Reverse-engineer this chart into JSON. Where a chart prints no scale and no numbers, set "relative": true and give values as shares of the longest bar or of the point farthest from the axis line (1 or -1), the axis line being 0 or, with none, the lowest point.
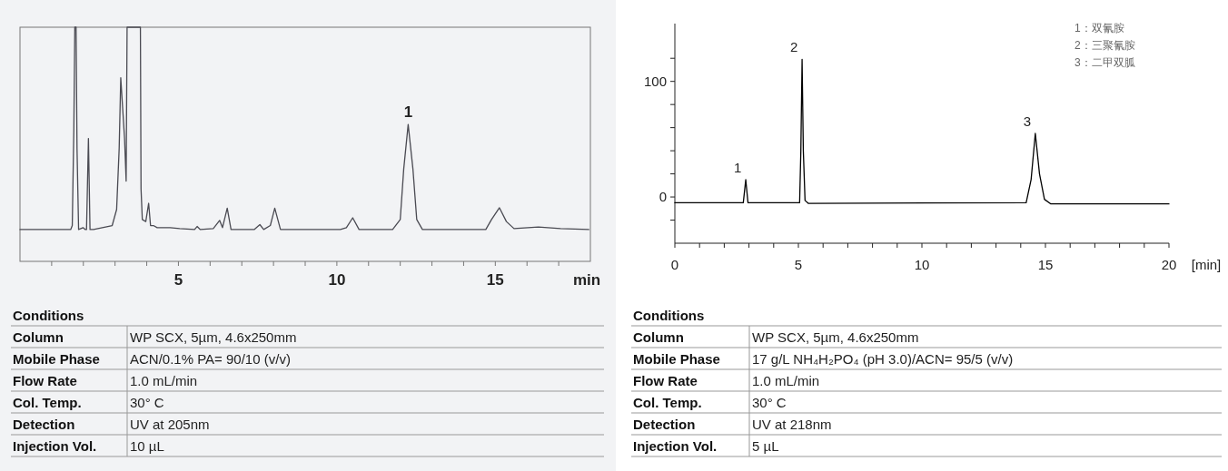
{
  "chart_data": [
    {
      "type": "line",
      "relative": true,
      "tick_labels": "x",
      "xlabel": "min",
      "color": "#4a4a52",
      "x": [
        0,
        1.6,
        1.65,
        1.7,
        1.73,
        1.77,
        1.8,
        1.85,
        1.99,
        2.06,
        2.1,
        2.16,
        2.21,
        2.32,
        2.91,
        3.05,
        3.13,
        3.18,
        3.24,
        3.3,
        3.35,
        3.38,
        3.42,
        3.8,
        3.82,
        3.86,
        3.97,
        4.06,
        4.12,
        4.21,
        4.33,
        4.74,
        5.04,
        5.51,
        5.59,
        5.69,
        6.1,
        6.3,
        6.39,
        6.54,
        6.66,
        7.39,
        7.57,
        7.69,
        7.9,
        8.04,
        8.22,
        10.11,
        10.3,
        10.5,
        10.7,
        11.76,
        12.0,
        12.11,
        12.25,
        12.4,
        12.52,
        12.7,
        14.7,
        14.88,
        15.13,
        15.35,
        15.59,
        16.36,
        17.06,
        17.95
      ],
      "values": [
        0.136,
        0.136,
        0.153,
        0.568,
        1,
        1,
        0.482,
        0.136,
        0.144,
        0.136,
        0.136,
        0.525,
        0.136,
        0.136,
        0.153,
        0.222,
        0.482,
        0.784,
        0.654,
        0.525,
        0.343,
        1,
        1,
        1,
        0.309,
        0.179,
        0.17,
        0.248,
        0.153,
        0.153,
        0.144,
        0.144,
        0.14,
        0.136,
        0.149,
        0.136,
        0.14,
        0.175,
        0.144,
        0.227,
        0.136,
        0.136,
        0.157,
        0.136,
        0.153,
        0.227,
        0.136,
        0.136,
        0.144,
        0.186,
        0.136,
        0.136,
        0.179,
        0.395,
        0.585,
        0.395,
        0.179,
        0.136,
        0.136,
        0.179,
        0.229,
        0.17,
        0.14,
        0.147,
        0.14,
        0.136
      ],
      "xlim": [
        0,
        18
      ],
      "xticks": [
        {
          "value": 1,
          "label": null
        },
        {
          "value": 2,
          "label": null
        },
        {
          "value": 3,
          "label": null
        },
        {
          "value": 4,
          "label": null
        },
        5,
        {
          "value": 6,
          "label": null
        },
        {
          "value": 7,
          "label": null
        },
        {
          "value": 8,
          "label": null
        },
        {
          "value": 9,
          "label": null
        },
        10,
        {
          "value": 11,
          "label": null
        },
        {
          "value": 12,
          "label": null
        },
        {
          "value": 13,
          "label": null
        },
        {
          "value": 14,
          "label": null
        },
        15,
        {
          "value": 16,
          "label": null
        },
        {
          "value": 17,
          "label": null
        }
      ],
      "annotations": [
        {
          "text": "1",
          "x": 12.25,
          "y": 0.585
        }
      ]
    },
    {
      "type": "other",
      "title": "Conditions",
      "annotations": [
        "Column",
        "WP SCX, 5µm, 4.6x250mm",
        "Mobile Phase",
        "ACN/0.1% PA= 90/10 (v/v)",
        "Flow Rate",
        "1.0 mL/min",
        "Col. Temp.",
        "30° C",
        "Detection",
        "UV at 205nm",
        "Injection Vol.",
        "10 µL"
      ]
    },
    {
      "type": "line",
      "xlabel": "[min]",
      "color": "#000000",
      "x": [
        0,
        2.6,
        2.77,
        2.87,
        2.96,
        3.1,
        5.05,
        5.1,
        5.15,
        5.2,
        5.27,
        5.4,
        14.22,
        14.42,
        14.59,
        14.76,
        14.96,
        15.22,
        20
      ],
      "values": [
        -5,
        -5,
        -5,
        15,
        -5,
        -5,
        -5,
        40,
        119,
        40,
        -3,
        -5.5,
        -5,
        15,
        55,
        20,
        -2,
        -6,
        -6
      ],
      "xlim": [
        0,
        20
      ],
      "xticks": [
        0,
        {
          "value": 1,
          "label": null
        },
        {
          "value": 2,
          "label": null
        },
        {
          "value": 3,
          "label": null
        },
        {
          "value": 4,
          "label": null
        },
        5,
        {
          "value": 6,
          "label": null
        },
        {
          "value": 7,
          "label": null
        },
        {
          "value": 8,
          "label": null
        },
        {
          "value": 9,
          "label": null
        },
        10,
        {
          "value": 11,
          "label": null
        },
        {
          "value": 12,
          "label": null
        },
        {
          "value": 13,
          "label": null
        },
        {
          "value": 14,
          "label": null
        },
        15,
        {
          "value": 16,
          "label": null
        },
        {
          "value": 17,
          "label": null
        },
        {
          "value": 18,
          "label": null
        },
        {
          "value": 19,
          "label": null
        },
        20
      ],
      "ylim": [
        -40,
        150
      ],
      "yticks": [
        {
          "value": -20,
          "label": null
        },
        0,
        {
          "value": 20,
          "label": null
        },
        {
          "value": 40,
          "label": null
        },
        {
          "value": 60,
          "label": null
        },
        {
          "value": 80,
          "label": null
        },
        100,
        {
          "value": 120,
          "label": null
        }
      ],
      "annotations": [
        {
          "text": "1",
          "x": 2.87,
          "y": 15
        },
        {
          "text": "2",
          "x": 5.15,
          "y": 119
        },
        {
          "text": "3",
          "x": 14.59,
          "y": 55
        },
        "1：双氰胺",
        "2：三聚氰胺",
        "3：二甲双胍"
      ]
    },
    {
      "type": "other",
      "title": "Conditions",
      "annotations": [
        "Column",
        "WP SCX, 5µm, 4.6x250mm",
        "Mobile Phase",
        "17 g/L NH₄H₂PO₄ (pH 3.0)/ACN= 95/5 (v/v)",
        "Flow Rate",
        "1.0 mL/min",
        "Col. Temp.",
        "30° C",
        "Detection",
        "UV at 218nm",
        "Injection Vol.",
        "5 µL"
      ]
    }
  ]
}
